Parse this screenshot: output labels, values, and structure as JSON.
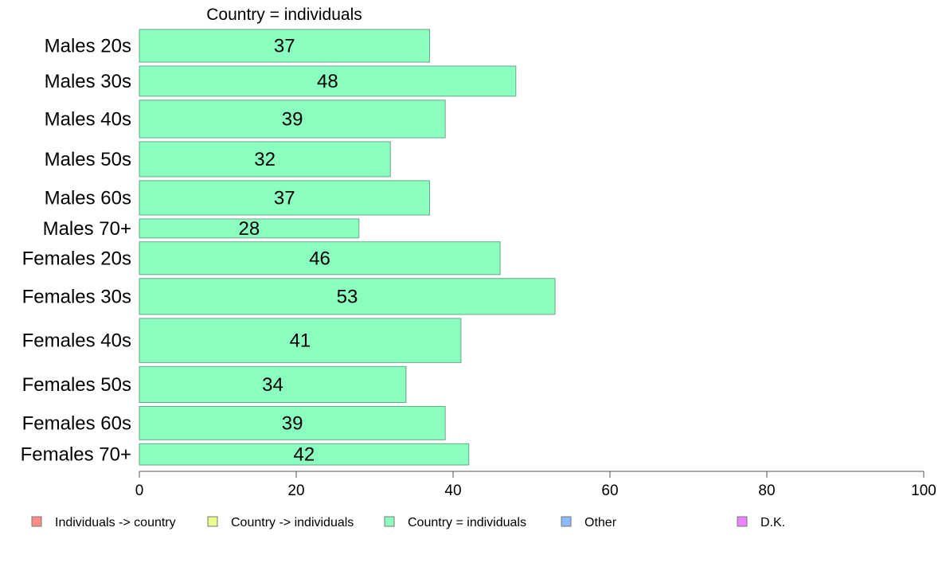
{
  "chart_data": {
    "type": "bar",
    "orientation": "horizontal",
    "title": "Country = individuals",
    "categories": [
      "Males 20s",
      "Males 30s",
      "Males 40s",
      "Males 50s",
      "Males 60s",
      "Males 70+",
      "Females 20s",
      "Females 30s",
      "Females 40s",
      "Females 50s",
      "Females 60s",
      "Females 70+"
    ],
    "values": [
      37,
      48,
      39,
      32,
      37,
      28,
      46,
      53,
      41,
      34,
      39,
      42
    ],
    "value_labels": [
      "37",
      "48",
      "39",
      "32",
      "37",
      "28",
      "46",
      "53",
      "41",
      "34",
      "39",
      "42"
    ],
    "relative_weights": [
      1.0,
      0.92,
      1.15,
      1.07,
      1.05,
      0.58,
      1.0,
      1.1,
      1.35,
      1.1,
      1.02,
      0.65
    ],
    "xlim": [
      0,
      100
    ],
    "xticks": [
      0,
      20,
      40,
      60,
      80,
      100
    ],
    "xtick_labels": [
      "0",
      "20",
      "40",
      "60",
      "80",
      "100"
    ],
    "grid": false,
    "bar_color": "#8affbf",
    "bar_edge_color": "#6aa58a",
    "legend": {
      "placement": "bottom",
      "items": [
        {
          "label": "Individuals -> country",
          "color": "#ff8c86"
        },
        {
          "label": "Country -> individuals",
          "color": "#ebff8c"
        },
        {
          "label": "Country = individuals",
          "color": "#8affbf"
        },
        {
          "label": "Other",
          "color": "#8cbaff"
        },
        {
          "label": "D.K.",
          "color": "#eb82ff"
        }
      ]
    }
  }
}
